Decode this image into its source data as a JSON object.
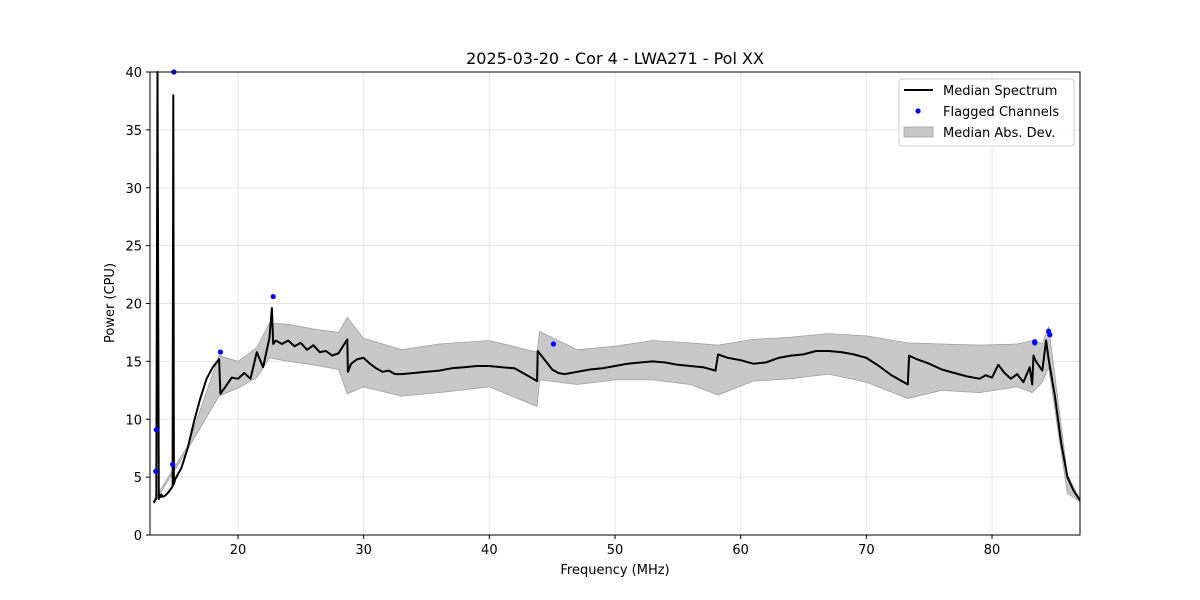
{
  "chart_data": {
    "type": "line",
    "title": "2025-03-20 - Cor 4 - LWA271 - Pol XX",
    "xlabel": "Frequency (MHz)",
    "ylabel": "Power (CPU)",
    "xlim": [
      13,
      87
    ],
    "ylim": [
      0,
      40
    ],
    "xticks": [
      20,
      30,
      40,
      50,
      60,
      70,
      80
    ],
    "yticks": [
      0,
      5,
      10,
      15,
      20,
      25,
      30,
      35,
      40
    ],
    "grid": true,
    "legend_position": "top-right",
    "colors": {
      "median": "#000000",
      "flagged": "#0000ff",
      "band": "#c8c8c8",
      "band_edge": "#a0a0a0"
    },
    "series": [
      {
        "name": "Median Spectrum",
        "kind": "line",
        "x": [
          13.3,
          13.5,
          13.6,
          13.7,
          13.8,
          13.85,
          13.9,
          14.0,
          14.2,
          14.4,
          14.6,
          14.8,
          14.85,
          14.9,
          15.0,
          15.5,
          16.0,
          16.5,
          17.0,
          17.5,
          18.0,
          18.5,
          18.6,
          19.0,
          19.5,
          20.0,
          20.5,
          21.0,
          21.5,
          22.0,
          22.5,
          22.7,
          22.8,
          23.0,
          23.5,
          24.0,
          24.5,
          25.0,
          25.5,
          26.0,
          26.5,
          27.0,
          27.5,
          28.0,
          28.7,
          28.75,
          29.0,
          29.5,
          30.0,
          30.5,
          31.0,
          31.5,
          32.0,
          32.5,
          33.0,
          34.0,
          35.0,
          36.0,
          37.0,
          38.0,
          39.0,
          40.0,
          41.0,
          42.0,
          43.0,
          43.8,
          43.85,
          44.5,
          45.0,
          45.5,
          46.0,
          47.0,
          48.0,
          49.0,
          50.0,
          51.0,
          52.0,
          53.0,
          54.0,
          55.0,
          56.0,
          57.0,
          58.0,
          58.2,
          59.0,
          60.0,
          61.0,
          62.0,
          63.0,
          64.0,
          65.0,
          66.0,
          67.0,
          68.0,
          69.0,
          70.0,
          71.0,
          72.0,
          73.3,
          73.4,
          74.0,
          75.0,
          76.0,
          77.0,
          78.0,
          79.0,
          79.5,
          80.0,
          80.5,
          81.0,
          81.5,
          82.0,
          82.5,
          83.0,
          83.2,
          83.3,
          83.5,
          84.0,
          84.3,
          84.5,
          85.0,
          85.5,
          86.0,
          86.5,
          87.0
        ],
        "y": [
          2.8,
          3.2,
          40.0,
          3.1,
          3.4,
          3.3,
          3.5,
          3.3,
          3.4,
          3.6,
          3.9,
          4.2,
          38.0,
          4.4,
          4.8,
          5.8,
          7.5,
          9.8,
          11.8,
          13.5,
          14.5,
          15.2,
          12.2,
          12.8,
          13.6,
          13.5,
          14.0,
          13.5,
          15.8,
          14.5,
          17.0,
          19.6,
          16.5,
          16.8,
          16.5,
          16.8,
          16.3,
          16.6,
          16.0,
          16.4,
          15.8,
          15.9,
          15.5,
          15.7,
          16.9,
          14.1,
          14.8,
          15.2,
          15.3,
          14.8,
          14.4,
          14.1,
          14.2,
          13.9,
          13.9,
          14.0,
          14.1,
          14.2,
          14.4,
          14.5,
          14.6,
          14.6,
          14.5,
          14.4,
          13.8,
          13.3,
          15.9,
          15.0,
          14.3,
          14.0,
          13.9,
          14.1,
          14.3,
          14.4,
          14.6,
          14.8,
          14.9,
          15.0,
          14.9,
          14.7,
          14.6,
          14.5,
          14.2,
          15.6,
          15.3,
          15.1,
          14.8,
          14.9,
          15.3,
          15.5,
          15.6,
          15.9,
          15.9,
          15.8,
          15.6,
          15.3,
          14.6,
          13.8,
          13.0,
          15.5,
          15.2,
          14.8,
          14.3,
          14.0,
          13.7,
          13.5,
          13.8,
          13.6,
          14.7,
          14.0,
          13.5,
          13.9,
          13.2,
          14.5,
          13.0,
          15.5,
          15.0,
          14.2,
          16.8,
          15.2,
          12.0,
          8.0,
          5.0,
          3.8,
          3.0
        ]
      },
      {
        "name": "Flagged Channels",
        "kind": "scatter",
        "x": [
          13.45,
          13.5,
          14.8,
          14.9,
          18.6,
          22.8,
          45.1,
          83.4,
          83.4,
          84.5,
          84.6
        ],
        "y": [
          5.5,
          9.1,
          6.1,
          40.0,
          15.8,
          20.6,
          16.5,
          16.7,
          16.6,
          17.6,
          17.3
        ]
      },
      {
        "name": "Median Abs. Dev.",
        "kind": "band",
        "x": [
          13.3,
          16.0,
          18.5,
          20.0,
          21.5,
          22.5,
          24.0,
          26.0,
          28.0,
          28.7,
          30.0,
          33.0,
          36.0,
          40.0,
          43.8,
          44.0,
          47.0,
          50.0,
          53.0,
          56.0,
          58.2,
          61.0,
          64.0,
          67.0,
          70.0,
          73.3,
          76.0,
          79.0,
          82.0,
          83.2,
          84.0,
          84.5,
          86.0,
          87.0
        ],
        "lower": [
          2.7,
          7.4,
          12.0,
          12.7,
          13.6,
          15.3,
          15.0,
          14.7,
          14.3,
          12.2,
          12.8,
          12.0,
          12.3,
          12.8,
          11.1,
          13.4,
          13.0,
          13.4,
          13.4,
          13.0,
          12.1,
          13.3,
          13.5,
          13.9,
          13.2,
          11.8,
          12.5,
          12.3,
          12.8,
          12.3,
          13.2,
          14.5,
          3.6,
          2.9
        ],
        "upper": [
          3.0,
          7.7,
          15.5,
          15.0,
          16.2,
          18.3,
          18.2,
          17.8,
          17.5,
          18.8,
          17.0,
          16.0,
          16.5,
          16.8,
          15.8,
          17.6,
          16.0,
          16.3,
          16.8,
          16.6,
          16.4,
          16.9,
          17.1,
          17.4,
          17.2,
          16.6,
          16.5,
          16.4,
          16.5,
          16.8,
          16.5,
          18.0,
          5.2,
          3.1
        ]
      }
    ]
  }
}
